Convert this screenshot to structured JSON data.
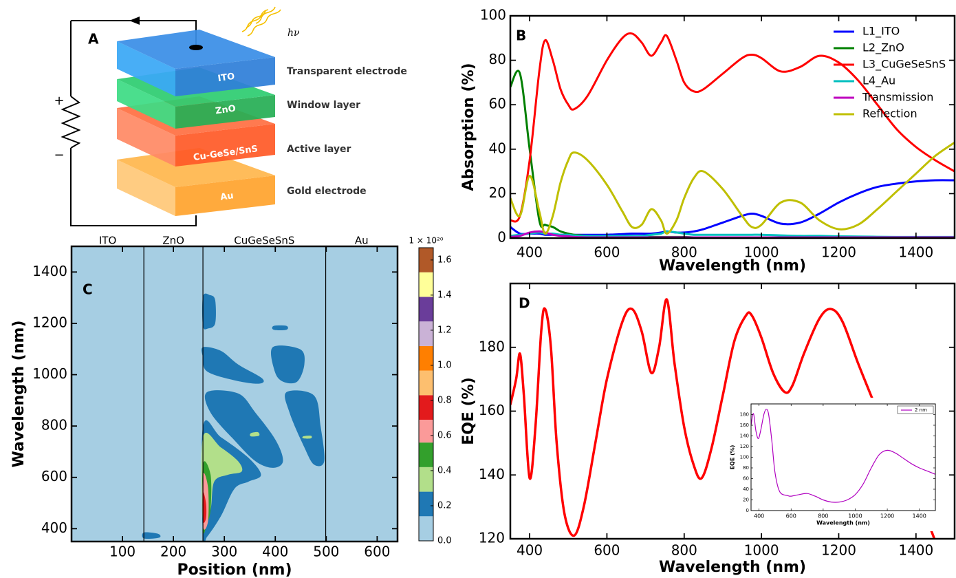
{
  "diagram": {
    "label": "A",
    "photon": "hν",
    "plus": "+",
    "minus": "−",
    "layers": [
      {
        "name": "ITO",
        "role": "Transparent electrode"
      },
      {
        "name": "ZnO",
        "role": "Window layer"
      },
      {
        "name": "Cu-GeSe/SnS",
        "role": "Active layer"
      },
      {
        "name": "Au",
        "role": "Gold electrode"
      }
    ]
  },
  "chart_data": [
    {
      "type": "line",
      "label": "B",
      "xlabel": "Wavelength (nm)",
      "ylabel": "Absorption (%)",
      "xlim": [
        350,
        1500
      ],
      "ylim": [
        0,
        100
      ],
      "xticks": [
        400,
        600,
        800,
        1000,
        1200,
        1400
      ],
      "yticks": [
        0,
        20,
        40,
        60,
        80,
        100
      ],
      "legend": "upper right",
      "x": [
        350,
        375,
        400,
        425,
        440,
        460,
        480,
        500,
        515,
        550,
        600,
        640,
        665,
        690,
        715,
        740,
        755,
        780,
        800,
        825,
        850,
        900,
        950,
        975,
        1000,
        1050,
        1100,
        1150,
        1200,
        1250,
        1300,
        1350,
        1400,
        1450,
        1500
      ],
      "series": [
        {
          "name": "L1_ITO",
          "color": "#0000ff",
          "values": [
            5,
            2,
            2,
            2,
            1.5,
            1.5,
            1.5,
            1.5,
            1.5,
            1.5,
            1.5,
            1.8,
            2,
            2,
            2,
            2.5,
            3,
            2.5,
            2.5,
            3,
            4,
            7,
            10,
            11,
            10,
            6.5,
            7,
            11,
            16,
            20,
            23,
            24.5,
            25.5,
            26,
            26
          ]
        },
        {
          "name": "L2_ZnO",
          "color": "#008000",
          "values": [
            68,
            74,
            40,
            8,
            6,
            5,
            3,
            2,
            1.5,
            1,
            0.5,
            0.5,
            0.5,
            0.5,
            0.5,
            0.5,
            0.5,
            0.5,
            0.5,
            0.3,
            0.3,
            0.3,
            0.3,
            0.3,
            0.3,
            0.3,
            0.3,
            0.3,
            0.3,
            0.3,
            0.3,
            0.3,
            0.3,
            0.3,
            0.3
          ]
        },
        {
          "name": "L3_CuGeSeSnS",
          "color": "#ff0000",
          "values": [
            8,
            10,
            35,
            75,
            89,
            80,
            67,
            60,
            58,
            64,
            80,
            90,
            92,
            88,
            82,
            88,
            91,
            80,
            70,
            66,
            67,
            74,
            81,
            82.5,
            81,
            75,
            77,
            82,
            79,
            71,
            60,
            49,
            41,
            35,
            30
          ]
        },
        {
          "name": "L4_Au",
          "color": "#00bfbf",
          "values": [
            1,
            1.5,
            2,
            2.5,
            2,
            2,
            1.5,
            1.5,
            1.2,
            1,
            1,
            1,
            1,
            1,
            1.5,
            2,
            3,
            2.5,
            2,
            1.5,
            1.5,
            1.5,
            1.5,
            1.5,
            1.5,
            1.2,
            1,
            1,
            0.8,
            0.7,
            0.6,
            0.5,
            0.5,
            0.5,
            0.5
          ]
        },
        {
          "name": "Transmission",
          "color": "#bf00bf",
          "values": [
            0.5,
            1,
            2.5,
            3,
            2.5,
            1.5,
            1,
            0.8,
            0.5,
            0.3,
            0.3,
            0.3,
            0.3,
            0.3,
            0.3,
            0.3,
            0.3,
            0.3,
            0.3,
            0.3,
            0.3,
            0.3,
            0.3,
            0.3,
            0.3,
            0.3,
            0.3,
            0.3,
            0.3,
            0.3,
            0.3,
            0.3,
            0.3,
            0.3,
            0.3
          ]
        },
        {
          "name": "Reflection",
          "color": "#bfbf00",
          "values": [
            18,
            10,
            28,
            12,
            2,
            10,
            25,
            35,
            38.5,
            35,
            24,
            12,
            5,
            6,
            13,
            8,
            2,
            8,
            18,
            27,
            30,
            22,
            10,
            5,
            6,
            16,
            16,
            8,
            4,
            6,
            13,
            21,
            29,
            37,
            43
          ]
        }
      ]
    },
    {
      "type": "contour",
      "label": "C",
      "xlabel": "Position (nm)",
      "ylabel": "Wavelength (nm)",
      "xlim": [
        0,
        640
      ],
      "ylim": [
        350,
        1500
      ],
      "xticks": [
        100,
        200,
        300,
        400,
        500,
        600
      ],
      "yticks": [
        400,
        600,
        800,
        1000,
        1200,
        1400
      ],
      "layers": [
        {
          "name": "ITO",
          "start": 0,
          "end": 142
        },
        {
          "name": "ZnO",
          "start": 142,
          "end": 258
        },
        {
          "name": "CuGeSeSnS",
          "start": 258,
          "end": 499
        },
        {
          "name": "Au",
          "start": 499,
          "end": 640
        }
      ],
      "colorbar": {
        "label": "1 × 10²⁰",
        "levels": [
          0,
          0.14,
          0.28,
          0.42,
          0.56,
          0.69,
          0.83,
          0.97,
          1.11,
          1.25,
          1.39,
          1.53,
          1.67
        ],
        "colors": [
          "#a6cee3",
          "#1f78b4",
          "#b2df8a",
          "#33a02c",
          "#fb9a99",
          "#e31a1c",
          "#fdbf6f",
          "#ff7f00",
          "#cab2d6",
          "#6a3d9a",
          "#ffff99",
          "#b15928"
        ],
        "ticks": [
          {
            "value": 0,
            "label": "0.0"
          },
          0.2,
          0.4,
          0.6,
          0.8,
          {
            "value": 1,
            "label": "1.0"
          },
          1.2,
          1.4,
          1.6
        ]
      },
      "regions": [
        {
          "value": 0.2,
          "points": [
            [
              258,
              1305
            ],
            [
              272,
              1310
            ],
            [
              282,
              1290
            ],
            [
              282,
              1200
            ],
            [
              268,
              1180
            ],
            [
              258,
              1190
            ]
          ]
        },
        {
          "value": 0.2,
          "points": [
            [
              258,
              1107
            ],
            [
              293,
              1093
            ],
            [
              327,
              1040
            ],
            [
              374,
              986
            ],
            [
              368,
              965
            ],
            [
              320,
              978
            ],
            [
              266,
              1013
            ],
            [
              258,
              1067
            ]
          ]
        },
        {
          "value": 0.2,
          "points": [
            [
              266,
              932
            ],
            [
              327,
              927
            ],
            [
              361,
              852
            ],
            [
              401,
              744
            ],
            [
              415,
              663
            ],
            [
              395,
              637
            ],
            [
              361,
              663
            ],
            [
              320,
              744
            ],
            [
              273,
              852
            ]
          ]
        },
        {
          "value": 0.2,
          "points": [
            [
              258,
              798
            ],
            [
              293,
              757
            ],
            [
              347,
              677
            ],
            [
              372,
              610
            ],
            [
              347,
              583
            ],
            [
              320,
              556
            ],
            [
              293,
              448
            ],
            [
              266,
              368
            ],
            [
              258,
              360
            ]
          ]
        },
        {
          "value": 0.2,
          "points": [
            [
              395,
              1107
            ],
            [
              449,
              1099
            ],
            [
              457,
              1040
            ],
            [
              443,
              973
            ],
            [
              415,
              973
            ],
            [
              399,
              1013
            ]
          ]
        },
        {
          "value": 0.2,
          "points": [
            [
              397,
              1190
            ],
            [
              422,
              1190
            ],
            [
              422,
              1175
            ],
            [
              397,
              1175
            ]
          ]
        },
        {
          "value": 0.2,
          "points": [
            [
              422,
              932
            ],
            [
              476,
              919
            ],
            [
              489,
              798
            ],
            [
              496,
              663
            ],
            [
              476,
              650
            ],
            [
              457,
              717
            ],
            [
              428,
              852
            ]
          ]
        },
        {
          "value": 0.2,
          "points": [
            [
              142,
              385
            ],
            [
              170,
              380
            ],
            [
              172,
              365
            ],
            [
              142,
              362
            ]
          ]
        },
        {
          "value": 0.35,
          "points": [
            [
              258,
              757
            ],
            [
              293,
              717
            ],
            [
              327,
              663
            ],
            [
              334,
              623
            ],
            [
              307,
              610
            ],
            [
              280,
              583
            ],
            [
              273,
              475
            ],
            [
              258,
              421
            ]
          ]
        },
        {
          "value": 0.35,
          "points": [
            [
              352,
              772
            ],
            [
              366,
              776
            ],
            [
              368,
              762
            ],
            [
              352,
              760
            ]
          ]
        },
        {
          "value": 0.35,
          "points": [
            [
              455,
              760
            ],
            [
              470,
              762
            ],
            [
              470,
              752
            ],
            [
              455,
              752
            ]
          ]
        },
        {
          "value": 0.5,
          "points": [
            [
              258,
              650
            ],
            [
              273,
              610
            ],
            [
              273,
              475
            ],
            [
              266,
              421
            ],
            [
              258,
              395
            ]
          ]
        },
        {
          "value": 0.6,
          "points": [
            [
              258,
              610
            ],
            [
              268,
              560
            ],
            [
              268,
              430
            ],
            [
              258,
              410
            ]
          ]
        },
        {
          "value": 0.75,
          "points": [
            [
              258,
              540
            ],
            [
              264,
              500
            ],
            [
              264,
              440
            ],
            [
              258,
              430
            ]
          ]
        }
      ]
    },
    {
      "type": "line",
      "label": "D",
      "xlabel": "Wavelength (nm)",
      "ylabel": "EQE (%)",
      "xlim": [
        350,
        1500
      ],
      "ylim": [
        120,
        200
      ],
      "xticks": [
        400,
        600,
        800,
        1000,
        1200,
        1400
      ],
      "yticks": [
        120,
        140,
        160,
        180
      ],
      "color": "#ff0000",
      "x": [
        350,
        365,
        375,
        385,
        400,
        415,
        430,
        440,
        455,
        470,
        490,
        515,
        540,
        570,
        600,
        640,
        665,
        690,
        715,
        735,
        755,
        775,
        800,
        825,
        845,
        870,
        900,
        930,
        960,
        975,
        1000,
        1030,
        1060,
        1080,
        1110,
        1150,
        1180,
        1210,
        1250,
        1290,
        1300,
        1350,
        1400,
        1435,
        1460
      ],
      "values": [
        162,
        170,
        178,
        165,
        139,
        155,
        185,
        192,
        180,
        150,
        128,
        121,
        130,
        150,
        170,
        188,
        192,
        185,
        172,
        180,
        195,
        175,
        155,
        143,
        139,
        148,
        165,
        182,
        190,
        190,
        183,
        172,
        166,
        168,
        178,
        189,
        192,
        188,
        175,
        163,
        160,
        148,
        135,
        124,
        116
      ]
    },
    {
      "type": "line",
      "xlabel": "Wavelength (nm)",
      "ylabel": "EQE (%)",
      "xlim": [
        350,
        1500
      ],
      "ylim": [
        0,
        200
      ],
      "xticks": [
        400,
        600,
        800,
        1000,
        1200,
        1400
      ],
      "yticks": [
        0,
        20,
        40,
        60,
        80,
        100,
        120,
        140,
        160,
        180
      ],
      "legend": "upper right",
      "x": [
        350,
        365,
        380,
        395,
        410,
        430,
        445,
        460,
        480,
        500,
        530,
        580,
        600,
        650,
        700,
        750,
        800,
        850,
        900,
        950,
        1000,
        1050,
        1100,
        1150,
        1200,
        1250,
        1300,
        1350,
        1400,
        1450,
        1500
      ],
      "series": [
        {
          "name": "2 nm",
          "color": "#b000c0",
          "values": [
            160,
            182,
            150,
            135,
            150,
            180,
            190,
            180,
            130,
            70,
            35,
            28,
            27,
            30,
            32,
            27,
            20,
            16,
            16,
            20,
            30,
            50,
            80,
            105,
            113,
            108,
            98,
            88,
            80,
            74,
            68
          ]
        }
      ]
    }
  ]
}
